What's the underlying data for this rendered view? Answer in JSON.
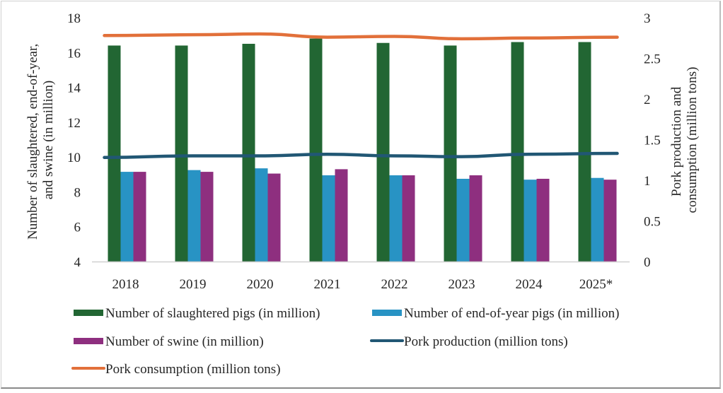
{
  "chart_data": {
    "type": "bar",
    "title": "",
    "categories": [
      "2018",
      "2019",
      "2020",
      "2021",
      "2022",
      "2023",
      "2024",
      "2025*"
    ],
    "left_axis": {
      "label_lines": [
        "Number of slaughtered, end-of-year,",
        "and swine (in million)"
      ],
      "ylim": [
        4,
        18
      ],
      "ticks": [
        4,
        6,
        8,
        10,
        12,
        14,
        16,
        18
      ]
    },
    "right_axis": {
      "label_lines": [
        "Pork production and",
        "consumption (million tons)"
      ],
      "ylim": [
        0,
        3
      ],
      "ticks": [
        "0",
        "0.5",
        "1",
        "1.5",
        "2",
        "2.5",
        "3"
      ]
    },
    "grid": false,
    "legend_position": "bottom",
    "series": [
      {
        "name": "Number of slaughtered pigs (in million)",
        "kind": "bar",
        "axis": "left",
        "color": "#226633",
        "values": [
          16.4,
          16.4,
          16.5,
          16.8,
          16.55,
          16.4,
          16.6,
          16.6
        ]
      },
      {
        "name": "Number of end-of-year pigs (in million)",
        "kind": "bar",
        "axis": "left",
        "color": "#2893c4",
        "values": [
          9.15,
          9.25,
          9.35,
          8.95,
          8.95,
          8.75,
          8.7,
          8.8
        ]
      },
      {
        "name": "Number of swine (in million)",
        "kind": "bar",
        "axis": "left",
        "color": "#8e2f7f",
        "values": [
          9.15,
          9.15,
          9.05,
          9.3,
          8.95,
          8.95,
          8.75,
          8.7
        ]
      },
      {
        "name": "Pork production (million tons)",
        "kind": "line",
        "axis": "right",
        "color": "#215774",
        "values": [
          1.28,
          1.3,
          1.3,
          1.32,
          1.3,
          1.29,
          1.32,
          1.33
        ]
      },
      {
        "name": "Pork consumption (million tons)",
        "kind": "line",
        "axis": "right",
        "color": "#e2703a",
        "values": [
          2.78,
          2.79,
          2.8,
          2.76,
          2.77,
          2.74,
          2.75,
          2.76
        ]
      }
    ]
  }
}
